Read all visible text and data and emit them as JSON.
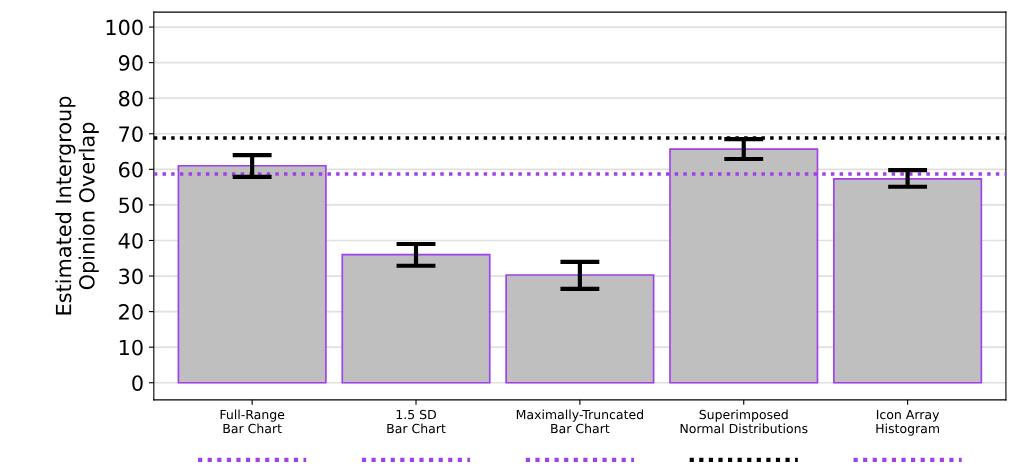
{
  "chart_data": {
    "type": "bar",
    "ylabel": "Estimated Intergroup\nOpinion Overlap",
    "categories": [
      "Full-Range\nBar Chart",
      "1.5 SD\nBar Chart",
      "Maximally-Truncated\nBar Chart",
      "Superimposed\nNormal Distributions",
      "Icon Array\nHistogram"
    ],
    "series": [
      {
        "color": "#bfbfbf",
        "values": [
          61.0,
          36.0,
          30.3,
          65.7,
          57.3
        ],
        "errors": [
          [
            57.9,
            64.0
          ],
          [
            32.9,
            39.0
          ],
          [
            26.4,
            34.0
          ],
          [
            62.9,
            68.5
          ],
          [
            55.1,
            59.8
          ]
        ]
      }
    ],
    "ylim": [
      -4.8,
      104.2
    ],
    "yticks": [
      0,
      10,
      20,
      30,
      40,
      50,
      60,
      70,
      80,
      90,
      100
    ],
    "grid": "y",
    "ref_lines": [
      {
        "axis": "y",
        "value": 68.8,
        "color": "#000000",
        "line_style": "dotted"
      },
      {
        "axis": "y",
        "value": 58.7,
        "color": "#a040e8",
        "line_style": "dotted"
      }
    ]
  }
}
